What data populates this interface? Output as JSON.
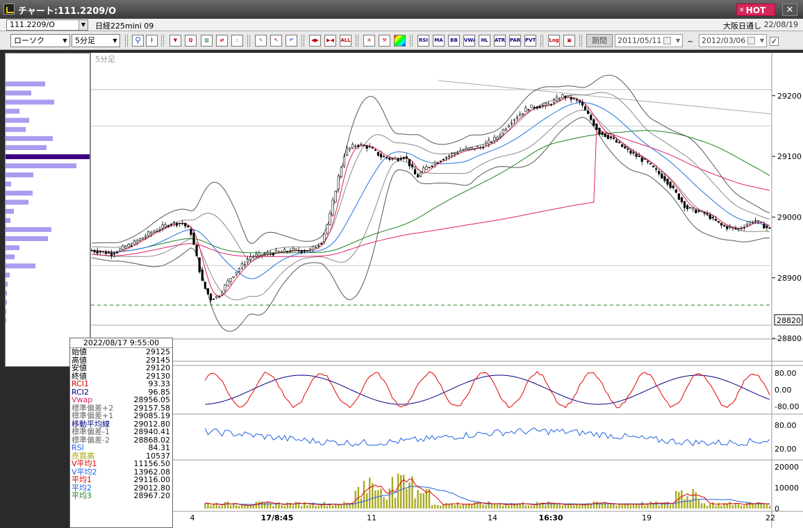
{
  "window": {
    "title": "チャート:111.2209/O",
    "hot_label": "HOT",
    "close_glyph": "✕"
  },
  "header": {
    "symbol": "111.2209/O",
    "symbol_name": "日経225mini 09",
    "market": "大阪日通し",
    "date": "22/08/19"
  },
  "toolbar": {
    "chart_type": "ローソク",
    "interval": "5分足",
    "period_label": "期間",
    "date_from": "2011/05/11",
    "date_to": "2012/03/06",
    "range_sep": "~",
    "text_buttons": [
      "RSI",
      "MA",
      "BB",
      "VWAP",
      "HL",
      "ATR",
      "PARA",
      "PVT",
      "Log"
    ],
    "all_label": "ALL"
  },
  "colors": {
    "up": "#ffffff",
    "down": "#000000",
    "ma1": "#e02040",
    "ma2": "#2070e0",
    "ma3": "#208020",
    "vwap": "#e0206a",
    "band": "#555555",
    "rci1": "#e00000",
    "rci2": "#000080",
    "rsi": "#2060e0",
    "volume": "#a8a820",
    "bar_purple": "#a99cf0",
    "bar_highlight": "#3a0080"
  },
  "chart_label": "5分足",
  "info_panel": {
    "datetime": "2022/08/17  9:55:00",
    "rows": [
      {
        "label": "始値",
        "value": "29125",
        "color": "#000000"
      },
      {
        "label": "高値",
        "value": "29145",
        "color": "#000000"
      },
      {
        "label": "安値",
        "value": "29120",
        "color": "#000000"
      },
      {
        "label": "終値",
        "value": "29130",
        "color": "#000000"
      },
      {
        "label": "RCI1",
        "value": "93.33",
        "color": "#e00000"
      },
      {
        "label": "RCI2",
        "value": "96.85",
        "color": "#000080"
      },
      {
        "label": "Vwap",
        "value": "28956.05",
        "color": "#e0206a"
      },
      {
        "label": "標準偏差+2",
        "value": "29157.58",
        "color": "#666666"
      },
      {
        "label": "標準偏差+1",
        "value": "29085.19",
        "color": "#666666"
      },
      {
        "label": "移動平均線",
        "value": "29012.80",
        "color": "#000080"
      },
      {
        "label": "標準偏差-1",
        "value": "28940.41",
        "color": "#666666"
      },
      {
        "label": "標準偏差-2",
        "value": "28868.02",
        "color": "#666666"
      },
      {
        "label": "RSI",
        "value": "84.31",
        "color": "#2060e0"
      },
      {
        "label": "売買高",
        "value": "10537",
        "color": "#a0a000"
      },
      {
        "label": "V平均1",
        "value": "11156.50",
        "color": "#e00000"
      },
      {
        "label": "V平均2",
        "value": "13962.08",
        "color": "#2060e0"
      },
      {
        "label": "平均1",
        "value": "29116.00",
        "color": "#e00000"
      },
      {
        "label": "平均2",
        "value": "29012.80",
        "color": "#2060e0"
      },
      {
        "label": "平均3",
        "value": "28967.20",
        "color": "#208020"
      }
    ]
  },
  "price_axis": {
    "ticks": [
      "29200",
      "29100",
      "29000",
      "28900",
      "28800"
    ],
    "current": "28820"
  },
  "rci_axis": [
    "80.00",
    "0.00",
    "-80.00"
  ],
  "rsi_axis": [
    "80.00",
    "20.00"
  ],
  "volume_axis": [
    "20000",
    "10000",
    "0"
  ],
  "time_labels": [
    {
      "text": "4",
      "bold": false
    },
    {
      "text": "17/8:45",
      "bold": true
    },
    {
      "text": "11",
      "bold": false
    },
    {
      "text": "14",
      "bold": false
    },
    {
      "text": "16:30",
      "bold": true
    },
    {
      "text": "19",
      "bold": false
    },
    {
      "text": "22",
      "bold": false
    }
  ],
  "volume_profile": [
    {
      "price": 29220,
      "volume": 57
    },
    {
      "price": 29205,
      "volume": 37
    },
    {
      "price": 29190,
      "volume": 70
    },
    {
      "price": 29175,
      "volume": 20
    },
    {
      "price": 29160,
      "volume": 34
    },
    {
      "price": 29145,
      "volume": 29
    },
    {
      "price": 29130,
      "volume": 68
    },
    {
      "price": 29115,
      "volume": 59
    },
    {
      "price": 29100,
      "volume": 121
    },
    {
      "price": 29085,
      "volume": 102
    },
    {
      "price": 29070,
      "volume": 40
    },
    {
      "price": 29055,
      "volume": 8
    },
    {
      "price": 29040,
      "volume": 39
    },
    {
      "price": 29025,
      "volume": 33
    },
    {
      "price": 29010,
      "volume": 12
    },
    {
      "price": 28995,
      "volume": 7
    },
    {
      "price": 28980,
      "volume": 66
    },
    {
      "price": 28965,
      "volume": 61
    },
    {
      "price": 28950,
      "volume": 20
    },
    {
      "price": 28935,
      "volume": 13
    },
    {
      "price": 28920,
      "volume": 43
    },
    {
      "price": 28905,
      "volume": 6
    },
    {
      "price": 28890,
      "volume": 3
    },
    {
      "price": 28875,
      "volume": 2
    },
    {
      "price": 28860,
      "volume": 2
    },
    {
      "price": 28845,
      "volume": 1
    },
    {
      "price": 28830,
      "volume": 1
    }
  ]
}
